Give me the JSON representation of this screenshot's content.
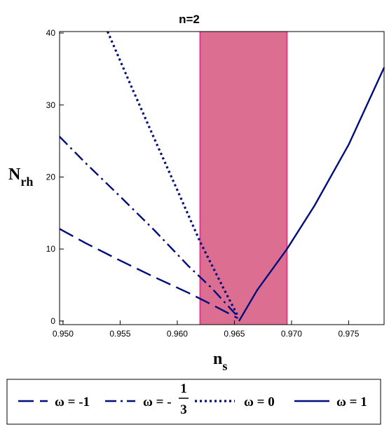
{
  "chart_data": {
    "type": "line",
    "title": "n=2",
    "xlabel": {
      "main": "n",
      "sub": "s"
    },
    "ylabel": {
      "main": "N",
      "sub": "rh"
    },
    "xlim": [
      0.9497,
      0.9781
    ],
    "ylim": [
      -0.5,
      40.2
    ],
    "x_ticks": [
      {
        "v": 0.95,
        "label": "0.950"
      },
      {
        "v": 0.955,
        "label": "0.955"
      },
      {
        "v": 0.96,
        "label": "0.960"
      },
      {
        "v": 0.965,
        "label": "0.965"
      },
      {
        "v": 0.97,
        "label": "0.970"
      },
      {
        "v": 0.975,
        "label": "0.975"
      }
    ],
    "y_ticks": [
      {
        "v": 0,
        "label": "0"
      },
      {
        "v": 10,
        "label": "10"
      },
      {
        "v": 20,
        "label": "20"
      },
      {
        "v": 30,
        "label": "30"
      },
      {
        "v": 40,
        "label": "40"
      }
    ],
    "shaded_band": {
      "x_range": [
        0.962,
        0.9696
      ],
      "fill": "#dc6f91",
      "edge": "#e8358a"
    },
    "series_color": "#000d7a",
    "series": [
      {
        "style": "dash",
        "legend_text": "ω = -1",
        "x": [
          0.9497,
          0.952,
          0.955,
          0.958,
          0.961,
          0.963,
          0.9653
        ],
        "y": [
          12.8,
          10.8,
          8.4,
          6.1,
          3.9,
          2.3,
          0.4
        ]
      },
      {
        "style": "dashdot",
        "legend_text": "ω = -",
        "legend_frac": {
          "num": "1",
          "den": "3"
        },
        "x": [
          0.9497,
          0.952,
          0.955,
          0.958,
          0.961,
          0.963,
          0.9653
        ],
        "y": [
          25.6,
          21.9,
          17.3,
          12.6,
          7.6,
          4.6,
          0.6
        ]
      },
      {
        "style": "dot",
        "legend_text": "ω = 0",
        "x": [
          0.9539,
          0.956,
          0.958,
          0.96,
          0.962,
          0.964,
          0.9653
        ],
        "y": [
          40.2,
          32.5,
          25.3,
          18.2,
          11.0,
          4.7,
          0.7
        ]
      },
      {
        "style": "solid",
        "legend_text": "ω = 1",
        "x": [
          0.9654,
          0.967,
          0.9696,
          0.972,
          0.975,
          0.9781
        ],
        "y": [
          0.0,
          4.3,
          10.0,
          16.0,
          24.5,
          35.2
        ]
      }
    ]
  }
}
